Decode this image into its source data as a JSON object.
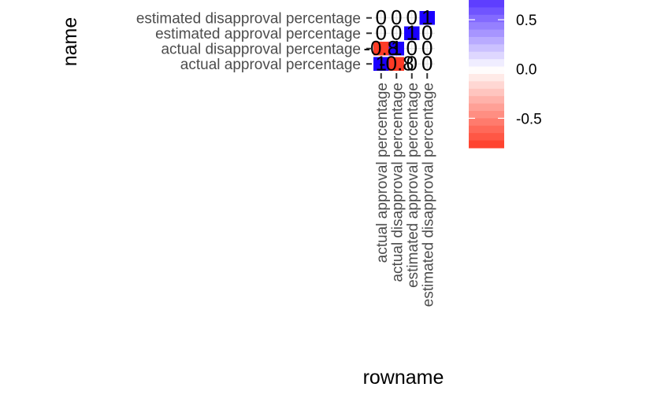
{
  "chart_data": {
    "type": "heatmap",
    "title": "",
    "xlabel": "rowname",
    "ylabel": "name",
    "x_categories": [
      "actual approval percentage",
      "actual disapproval percentage",
      "estimated approval percentage",
      "estimated disapproval percentage"
    ],
    "y_categories": [
      "actual approval percentage",
      "actual disapproval percentage",
      "estimated approval percentage",
      "estimated disapproval percentage"
    ],
    "cells": [
      {
        "x": "actual approval percentage",
        "y": "actual approval percentage",
        "value": 1,
        "label": "1"
      },
      {
        "x": "actual disapproval percentage",
        "y": "actual approval percentage",
        "value": -0.8,
        "label": "-0.8"
      },
      {
        "x": "estimated approval percentage",
        "y": "actual approval percentage",
        "value": 0,
        "label": "0"
      },
      {
        "x": "estimated disapproval percentage",
        "y": "actual approval percentage",
        "value": 0,
        "label": "0"
      },
      {
        "x": "actual approval percentage",
        "y": "actual disapproval percentage",
        "value": -0.8,
        "label": "-0.8"
      },
      {
        "x": "actual disapproval percentage",
        "y": "actual disapproval percentage",
        "value": 1,
        "label": "1"
      },
      {
        "x": "estimated approval percentage",
        "y": "actual disapproval percentage",
        "value": 0,
        "label": "0"
      },
      {
        "x": "estimated disapproval percentage",
        "y": "actual disapproval percentage",
        "value": 0,
        "label": "0"
      },
      {
        "x": "actual approval percentage",
        "y": "estimated approval percentage",
        "value": 0,
        "label": "0"
      },
      {
        "x": "actual disapproval percentage",
        "y": "estimated approval percentage",
        "value": 0,
        "label": "0"
      },
      {
        "x": "estimated approval percentage",
        "y": "estimated approval percentage",
        "value": 1,
        "label": "1"
      },
      {
        "x": "estimated disapproval percentage",
        "y": "estimated approval percentage",
        "value": 0,
        "label": "0"
      },
      {
        "x": "actual approval percentage",
        "y": "estimated disapproval percentage",
        "value": 0,
        "label": "0"
      },
      {
        "x": "actual disapproval percentage",
        "y": "estimated disapproval percentage",
        "value": 0,
        "label": "0"
      },
      {
        "x": "estimated approval percentage",
        "y": "estimated disapproval percentage",
        "value": 0,
        "label": "0"
      },
      {
        "x": "estimated disapproval percentage",
        "y": "estimated disapproval percentage",
        "value": 1,
        "label": "1"
      }
    ],
    "color_scale": {
      "low": "#ff3b26",
      "mid": "#ffffff",
      "high": "#5533ff",
      "high_cell": "#1a00ff",
      "range": [
        -0.8,
        0.7
      ]
    },
    "legend": {
      "position": "right",
      "ticks": [
        "0.5",
        "0.0",
        "-0.5"
      ],
      "tick_values": [
        0.5,
        0.0,
        -0.5
      ]
    },
    "grid": true
  }
}
